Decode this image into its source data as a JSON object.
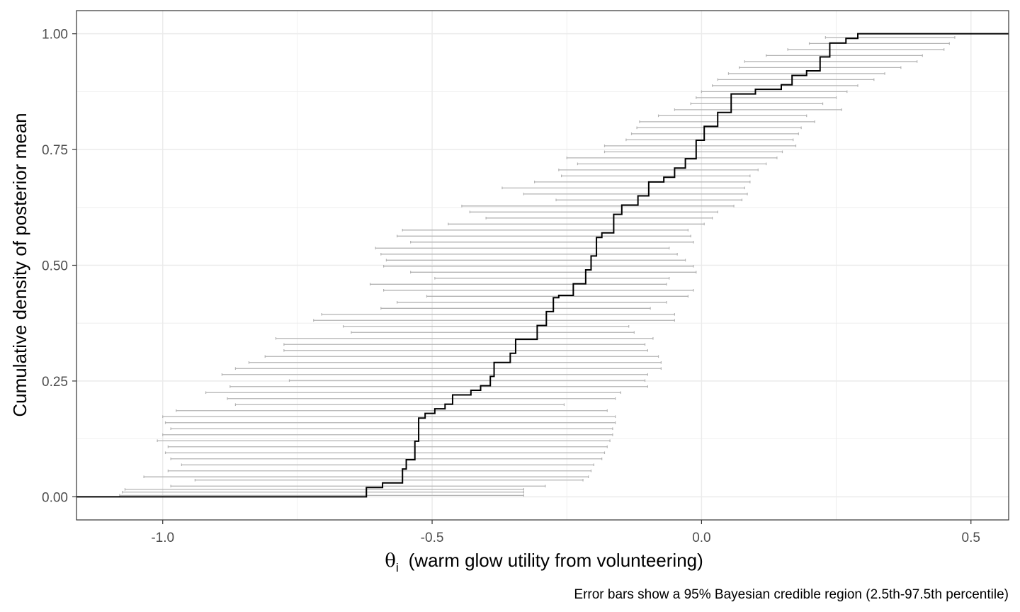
{
  "chart_data": {
    "type": "line",
    "title": "",
    "xlabel_symbol": "θ",
    "xlabel_subscript": "i",
    "xlabel": "(warm glow utility from volunteering)",
    "ylabel": "Cumulative density of posterior mean",
    "caption": "Error bars show a 95% Bayesian credible region (2.5th-97.5th percentile)",
    "xlim": [
      -1.16,
      0.57
    ],
    "ylim": [
      -0.05,
      1.05
    ],
    "x_ticks": [
      -1.0,
      -0.5,
      0.0,
      0.5
    ],
    "x_tick_labels": [
      "-1.0",
      "-0.5",
      "0.0",
      "0.5"
    ],
    "y_ticks": [
      0.0,
      0.25,
      0.5,
      0.75,
      1.0
    ],
    "y_tick_labels": [
      "0.00",
      "0.25",
      "0.50",
      "0.75",
      "1.00"
    ],
    "grid": true,
    "colors": {
      "ecdf": "#000000",
      "error_bars": "#b3b3b3",
      "grid": "#ebebeb",
      "panel_border": "#333333"
    },
    "series": [
      {
        "kind": "ecdf",
        "points": [
          [
            -0.622,
            0.0
          ],
          [
            -0.622,
            0.02
          ],
          [
            -0.592,
            0.02
          ],
          [
            -0.592,
            0.03
          ],
          [
            -0.555,
            0.03
          ],
          [
            -0.555,
            0.06
          ],
          [
            -0.548,
            0.06
          ],
          [
            -0.548,
            0.08
          ],
          [
            -0.532,
            0.08
          ],
          [
            -0.532,
            0.12
          ],
          [
            -0.525,
            0.12
          ],
          [
            -0.525,
            0.17
          ],
          [
            -0.513,
            0.17
          ],
          [
            -0.513,
            0.18
          ],
          [
            -0.495,
            0.18
          ],
          [
            -0.495,
            0.19
          ],
          [
            -0.476,
            0.19
          ],
          [
            -0.476,
            0.2
          ],
          [
            -0.462,
            0.2
          ],
          [
            -0.462,
            0.22
          ],
          [
            -0.428,
            0.22
          ],
          [
            -0.428,
            0.23
          ],
          [
            -0.41,
            0.23
          ],
          [
            -0.41,
            0.24
          ],
          [
            -0.392,
            0.24
          ],
          [
            -0.392,
            0.26
          ],
          [
            -0.385,
            0.26
          ],
          [
            -0.385,
            0.29
          ],
          [
            -0.355,
            0.29
          ],
          [
            -0.355,
            0.31
          ],
          [
            -0.345,
            0.31
          ],
          [
            -0.345,
            0.34
          ],
          [
            -0.305,
            0.34
          ],
          [
            -0.305,
            0.37
          ],
          [
            -0.288,
            0.37
          ],
          [
            -0.288,
            0.4
          ],
          [
            -0.275,
            0.4
          ],
          [
            -0.275,
            0.43
          ],
          [
            -0.265,
            0.43
          ],
          [
            -0.265,
            0.435
          ],
          [
            -0.238,
            0.435
          ],
          [
            -0.238,
            0.46
          ],
          [
            -0.215,
            0.46
          ],
          [
            -0.215,
            0.49
          ],
          [
            -0.205,
            0.49
          ],
          [
            -0.205,
            0.52
          ],
          [
            -0.195,
            0.52
          ],
          [
            -0.195,
            0.56
          ],
          [
            -0.185,
            0.56
          ],
          [
            -0.185,
            0.57
          ],
          [
            -0.163,
            0.57
          ],
          [
            -0.163,
            0.61
          ],
          [
            -0.148,
            0.61
          ],
          [
            -0.148,
            0.63
          ],
          [
            -0.118,
            0.63
          ],
          [
            -0.118,
            0.65
          ],
          [
            -0.098,
            0.65
          ],
          [
            -0.098,
            0.68
          ],
          [
            -0.07,
            0.68
          ],
          [
            -0.07,
            0.69
          ],
          [
            -0.05,
            0.69
          ],
          [
            -0.05,
            0.71
          ],
          [
            -0.03,
            0.71
          ],
          [
            -0.03,
            0.73
          ],
          [
            -0.01,
            0.73
          ],
          [
            -0.01,
            0.77
          ],
          [
            0.005,
            0.77
          ],
          [
            0.005,
            0.8
          ],
          [
            0.03,
            0.8
          ],
          [
            0.03,
            0.83
          ],
          [
            0.055,
            0.83
          ],
          [
            0.055,
            0.87
          ],
          [
            0.1,
            0.87
          ],
          [
            0.1,
            0.88
          ],
          [
            0.148,
            0.88
          ],
          [
            0.148,
            0.89
          ],
          [
            0.168,
            0.89
          ],
          [
            0.168,
            0.91
          ],
          [
            0.195,
            0.91
          ],
          [
            0.195,
            0.92
          ],
          [
            0.22,
            0.92
          ],
          [
            0.22,
            0.95
          ],
          [
            0.238,
            0.95
          ],
          [
            0.238,
            0.98
          ],
          [
            0.268,
            0.98
          ],
          [
            0.268,
            0.99
          ],
          [
            0.29,
            0.99
          ],
          [
            0.29,
            1.0
          ]
        ]
      },
      {
        "kind": "credible_intervals",
        "intervals": [
          [
            -1.08,
            -0.33,
            0.003
          ],
          [
            -1.075,
            -0.33,
            0.01
          ],
          [
            -1.07,
            -0.33,
            0.016
          ],
          [
            -0.985,
            -0.29,
            0.023
          ],
          [
            -0.94,
            -0.22,
            0.036
          ],
          [
            -1.035,
            -0.21,
            0.043
          ],
          [
            -0.99,
            -0.205,
            0.056
          ],
          [
            -0.965,
            -0.2,
            0.069
          ],
          [
            -0.985,
            -0.185,
            0.082
          ],
          [
            -0.995,
            -0.18,
            0.095
          ],
          [
            -0.99,
            -0.175,
            0.108
          ],
          [
            -1.01,
            -0.17,
            0.121
          ],
          [
            -1.0,
            -0.165,
            0.134
          ],
          [
            -0.985,
            -0.165,
            0.147
          ],
          [
            -0.995,
            -0.16,
            0.16
          ],
          [
            -1.0,
            -0.16,
            0.173
          ],
          [
            -0.975,
            -0.175,
            0.186
          ],
          [
            -0.865,
            -0.255,
            0.199
          ],
          [
            -0.88,
            -0.16,
            0.212
          ],
          [
            -0.92,
            -0.15,
            0.225
          ],
          [
            -0.875,
            -0.1,
            0.238
          ],
          [
            -0.765,
            -0.105,
            0.251
          ],
          [
            -0.89,
            -0.1,
            0.264
          ],
          [
            -0.865,
            -0.075,
            0.277
          ],
          [
            -0.84,
            -0.075,
            0.29
          ],
          [
            -0.81,
            -0.08,
            0.303
          ],
          [
            -0.775,
            -0.1,
            0.316
          ],
          [
            -0.775,
            -0.105,
            0.329
          ],
          [
            -0.79,
            -0.09,
            0.342
          ],
          [
            -0.65,
            -0.125,
            0.355
          ],
          [
            -0.665,
            -0.135,
            0.368
          ],
          [
            -0.72,
            -0.05,
            0.381
          ],
          [
            -0.705,
            -0.05,
            0.394
          ],
          [
            -0.595,
            -0.095,
            0.407
          ],
          [
            -0.565,
            -0.065,
            0.42
          ],
          [
            -0.51,
            -0.025,
            0.433
          ],
          [
            -0.59,
            -0.015,
            0.446
          ],
          [
            -0.615,
            -0.065,
            0.459
          ],
          [
            -0.495,
            -0.06,
            0.472
          ],
          [
            -0.54,
            -0.01,
            0.485
          ],
          [
            -0.59,
            -0.015,
            0.498
          ],
          [
            -0.585,
            -0.03,
            0.511
          ],
          [
            -0.595,
            -0.045,
            0.524
          ],
          [
            -0.605,
            -0.06,
            0.537
          ],
          [
            -0.54,
            -0.015,
            0.55
          ],
          [
            -0.565,
            -0.02,
            0.563
          ],
          [
            -0.555,
            -0.025,
            0.576
          ],
          [
            -0.47,
            0.005,
            0.589
          ],
          [
            -0.4,
            0.02,
            0.602
          ],
          [
            -0.43,
            0.03,
            0.615
          ],
          [
            -0.445,
            0.06,
            0.628
          ],
          [
            -0.27,
            0.075,
            0.641
          ],
          [
            -0.33,
            0.085,
            0.654
          ],
          [
            -0.37,
            0.08,
            0.667
          ],
          [
            -0.31,
            0.09,
            0.68
          ],
          [
            -0.26,
            0.09,
            0.693
          ],
          [
            -0.265,
            0.105,
            0.706
          ],
          [
            -0.23,
            0.12,
            0.719
          ],
          [
            -0.25,
            0.14,
            0.732
          ],
          [
            -0.18,
            0.15,
            0.745
          ],
          [
            -0.18,
            0.175,
            0.758
          ],
          [
            -0.14,
            0.17,
            0.771
          ],
          [
            -0.13,
            0.18,
            0.784
          ],
          [
            -0.12,
            0.185,
            0.797
          ],
          [
            -0.115,
            0.21,
            0.81
          ],
          [
            -0.08,
            0.195,
            0.823
          ],
          [
            -0.05,
            0.26,
            0.836
          ],
          [
            -0.02,
            0.225,
            0.849
          ],
          [
            -0.01,
            0.25,
            0.862
          ],
          [
            0.0,
            0.27,
            0.875
          ],
          [
            0.02,
            0.29,
            0.888
          ],
          [
            0.03,
            0.32,
            0.901
          ],
          [
            0.05,
            0.34,
            0.914
          ],
          [
            0.07,
            0.37,
            0.927
          ],
          [
            0.08,
            0.4,
            0.94
          ],
          [
            0.12,
            0.41,
            0.953
          ],
          [
            0.16,
            0.45,
            0.966
          ],
          [
            0.2,
            0.46,
            0.979
          ],
          [
            0.23,
            0.47,
            0.992
          ]
        ]
      }
    ]
  }
}
